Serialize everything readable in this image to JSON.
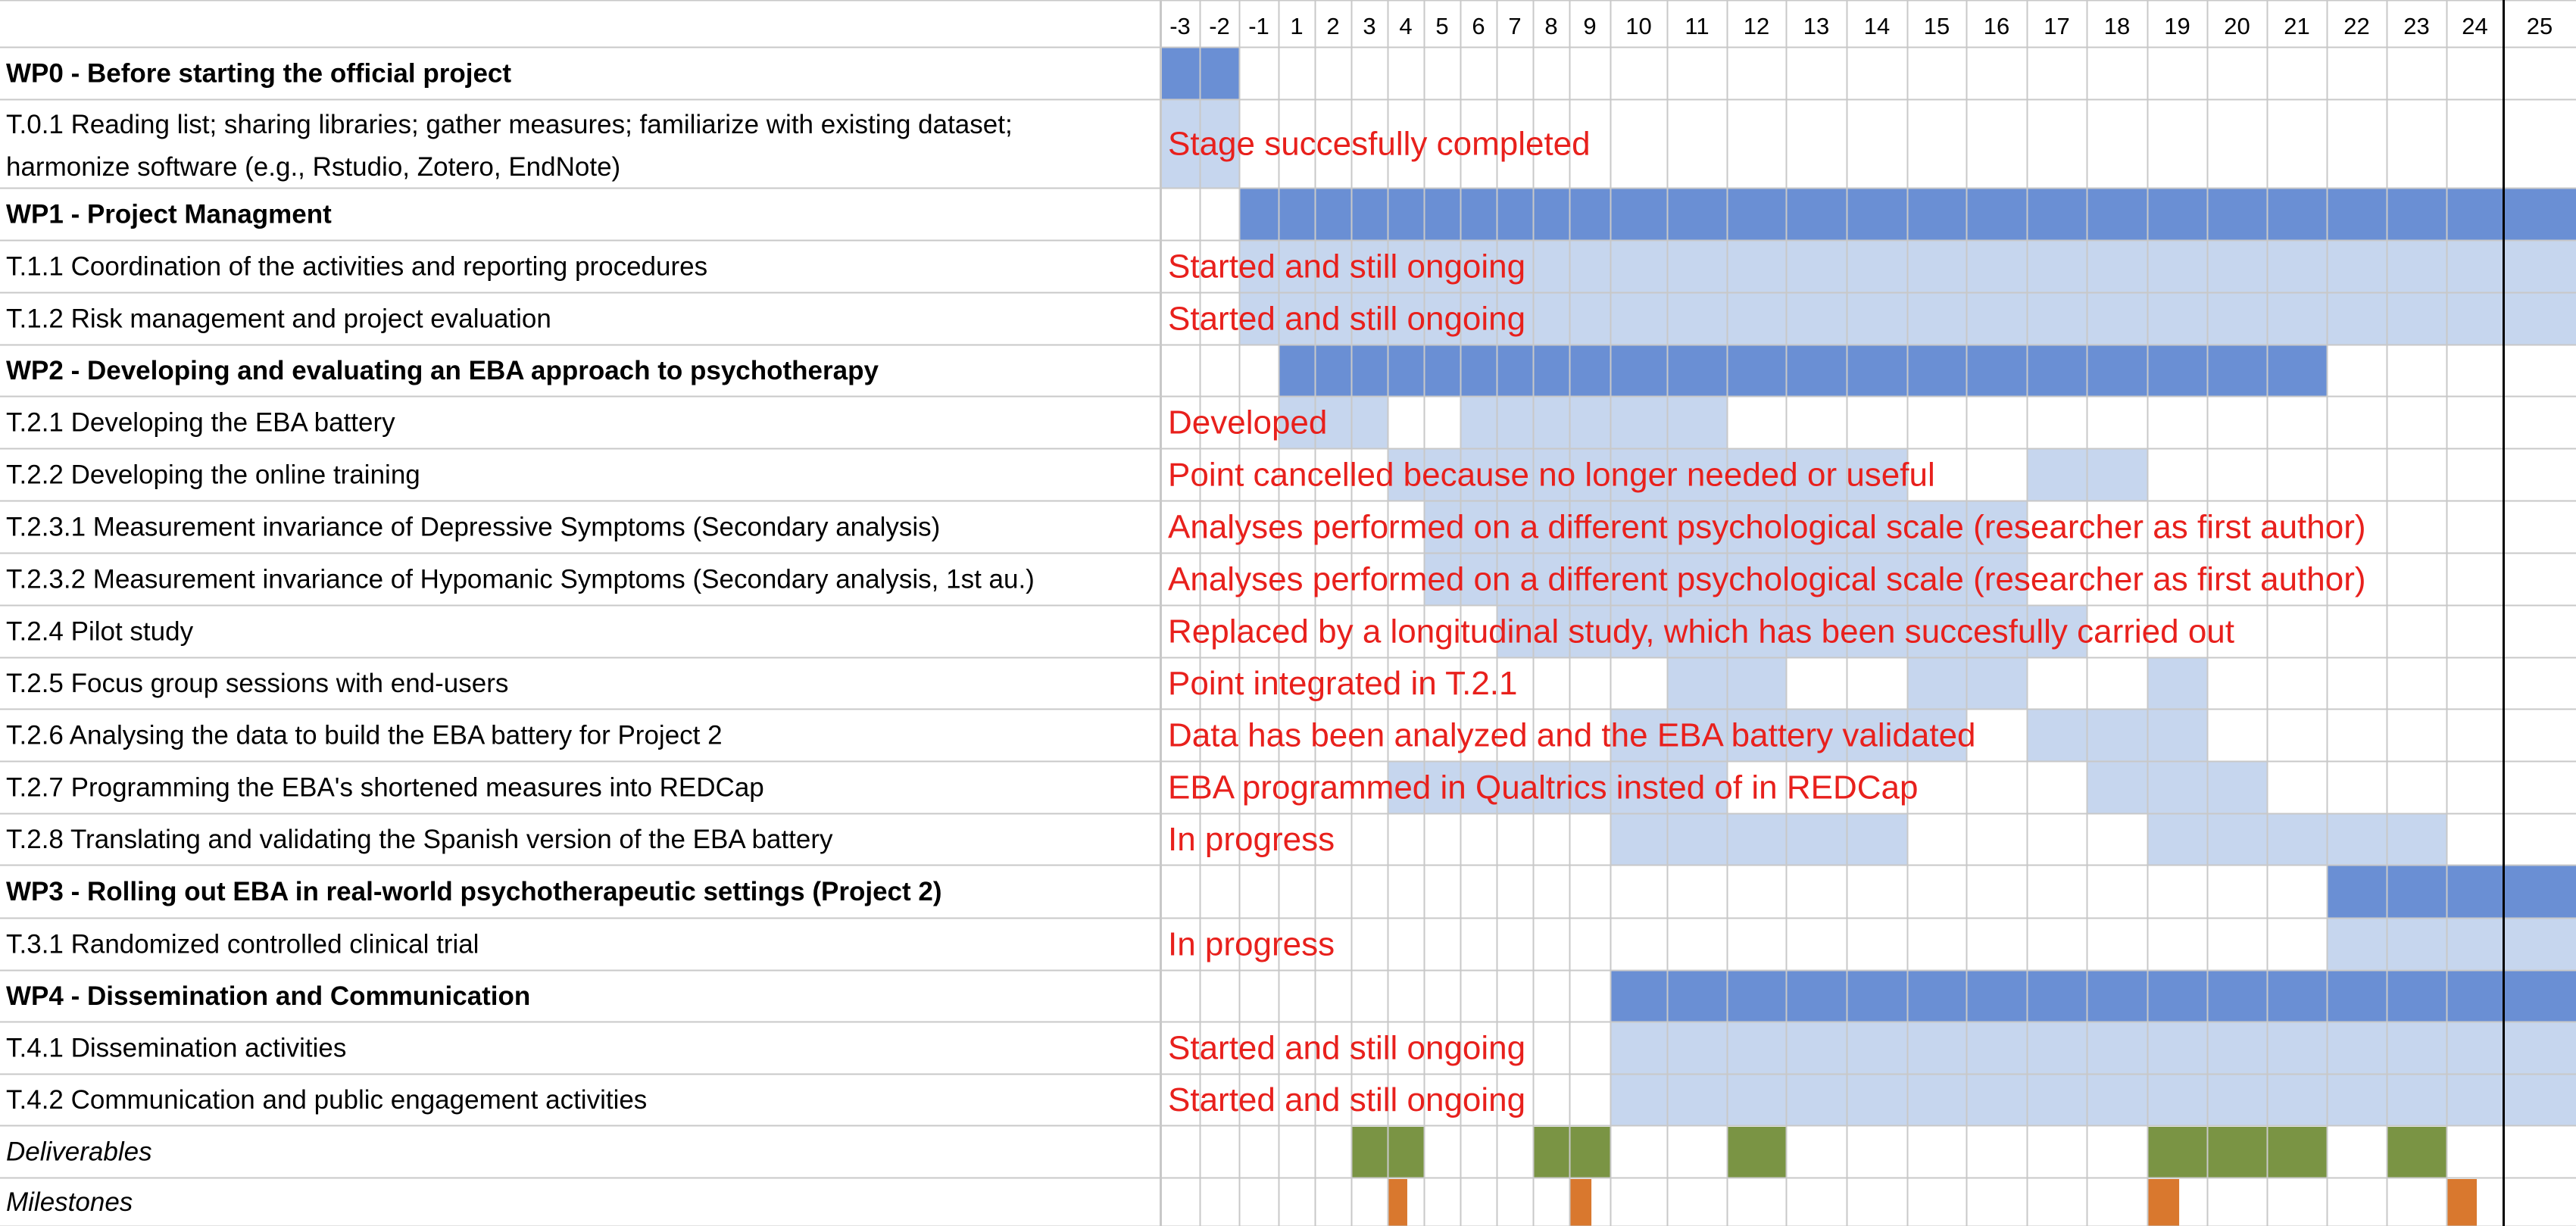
{
  "colors": {
    "wp_bar": "#6a8fd4",
    "task_bar": "#c6d6ee",
    "deliverable": "#7a9444",
    "milestone": "#d9782e",
    "status_text": "#e8201c",
    "grid": "#c8c8c8"
  },
  "chart_data": {
    "type": "gantt",
    "months": [
      -3,
      -2,
      -1,
      1,
      2,
      3,
      4,
      5,
      6,
      7,
      8,
      9,
      10,
      11,
      12,
      13,
      14,
      15,
      16,
      17,
      18,
      19,
      20,
      21,
      22,
      23,
      24,
      25
    ],
    "current_month": 24,
    "rows": [
      {
        "label": "WP0 - Before starting the official project",
        "kind": "wp",
        "spans": [
          [
            -3,
            -2
          ]
        ],
        "note": ""
      },
      {
        "label": "T.0.1 Reading list; sharing libraries; gather measures; familiarize with existing dataset; harmonize software (e.g., Rstudio, Zotero, EndNote)",
        "kind": "task",
        "spans": [
          [
            -3,
            -2
          ]
        ],
        "note": "Stage succesfully completed"
      },
      {
        "label": "WP1 - Project Managment",
        "kind": "wp",
        "spans": [
          [
            -1,
            25
          ]
        ],
        "note": ""
      },
      {
        "label": "T.1.1 Coordination of the activities and reporting procedures",
        "kind": "task",
        "spans": [
          [
            -1,
            25
          ]
        ],
        "note": "Started and still ongoing"
      },
      {
        "label": "T.1.2 Risk management and project evaluation",
        "kind": "task",
        "spans": [
          [
            -1,
            25
          ]
        ],
        "note": "Started and still ongoing"
      },
      {
        "label": "WP2 - Developing and evaluating an EBA approach to psychotherapy",
        "kind": "wp",
        "spans": [
          [
            1,
            21
          ]
        ],
        "note": ""
      },
      {
        "label": "T.2.1 Developing the EBA battery",
        "kind": "task",
        "spans": [
          [
            1,
            3
          ],
          [
            6,
            11
          ]
        ],
        "note": "Developed"
      },
      {
        "label": "T.2.2 Developing the online training",
        "kind": "task",
        "spans": [
          [
            4,
            14
          ],
          [
            17,
            18
          ]
        ],
        "note": "Point cancelled because no longer needed or useful"
      },
      {
        "label": "T.2.3.1 Measurement invariance of Depressive Symptoms (Secondary analysis)",
        "kind": "task",
        "spans": [
          [
            5,
            16
          ]
        ],
        "note": "Analyses performed on a different psychological scale (researcher as first author)"
      },
      {
        "label": "T.2.3.2 Measurement invariance of Hypomanic Symptoms (Secondary analysis, 1st au.)",
        "kind": "task",
        "spans": [
          [
            5,
            16
          ]
        ],
        "note": "Analyses performed on a different psychological scale (researcher as first author)"
      },
      {
        "label": "T.2.4 Pilot study",
        "kind": "task",
        "spans": [
          [
            7,
            17
          ]
        ],
        "note": "Replaced by a longitudinal study, which has been succesfully carried out"
      },
      {
        "label": "T.2.5 Focus group sessions with end-users",
        "kind": "task",
        "spans": [
          [
            11,
            12
          ],
          [
            15,
            16
          ],
          [
            19,
            19
          ]
        ],
        "note": "Point integrated in T.2.1"
      },
      {
        "label": "T.2.6 Analysing the data to build the EBA battery for Project 2",
        "kind": "task",
        "spans": [
          [
            10,
            15
          ],
          [
            17,
            19
          ]
        ],
        "note": "Data has been analyzed and the EBA battery validated"
      },
      {
        "label": "T.2.7 Programming the EBA's shortened measures into REDCap",
        "kind": "task",
        "spans": [
          [
            4,
            11
          ],
          [
            18,
            20
          ]
        ],
        "note": "EBA programmed in Qualtrics insted of in REDCap"
      },
      {
        "label": "T.2.8 Translating and validating the Spanish version of the EBA battery",
        "kind": "task",
        "spans": [
          [
            10,
            14
          ],
          [
            19,
            23
          ]
        ],
        "note": "In progress"
      },
      {
        "label": "WP3 - Rolling out EBA in real-world psychotherapeutic settings (Project 2)",
        "kind": "wp",
        "spans": [
          [
            22,
            25
          ]
        ],
        "note": ""
      },
      {
        "label": "T.3.1 Randomized controlled clinical trial",
        "kind": "task",
        "spans": [
          [
            22,
            25
          ]
        ],
        "note": "In progress"
      },
      {
        "label": "WP4 - Dissemination and Communication",
        "kind": "wp",
        "spans": [
          [
            10,
            25
          ]
        ],
        "note": ""
      },
      {
        "label": "T.4.1 Dissemination activities",
        "kind": "task",
        "spans": [
          [
            10,
            25
          ]
        ],
        "note": "Started and still ongoing"
      },
      {
        "label": "T.4.2 Communication and public engagement activities",
        "kind": "task",
        "spans": [
          [
            10,
            25
          ]
        ],
        "note": "Started and still ongoing"
      },
      {
        "label": "Deliverables",
        "kind": "deliverable",
        "spans": [
          [
            3,
            4
          ],
          [
            8,
            9
          ],
          [
            12,
            12
          ],
          [
            19,
            21
          ],
          [
            23,
            23
          ]
        ],
        "note": ""
      },
      {
        "label": "Milestones",
        "kind": "milestone",
        "spans": [
          [
            4,
            4
          ],
          [
            9,
            9
          ],
          [
            19,
            19
          ],
          [
            24,
            24
          ]
        ],
        "note": ""
      }
    ]
  }
}
